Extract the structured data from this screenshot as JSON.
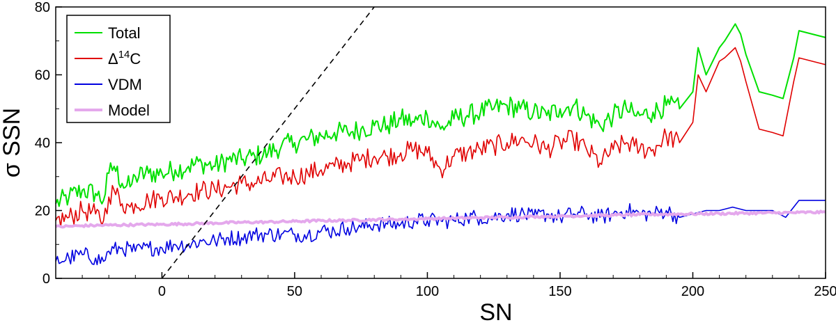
{
  "chart_data": {
    "type": "line",
    "xlabel": "SN",
    "ylabel": "σ SSN",
    "xlim": [
      -40,
      250
    ],
    "ylim": [
      0,
      80
    ],
    "xticks": [
      0,
      50,
      100,
      150,
      200,
      250
    ],
    "yticks": [
      0,
      20,
      40,
      60,
      80
    ],
    "grid": false,
    "legend_position": "top-left",
    "legend_sup": "14",
    "series": [
      {
        "name": "Total",
        "color": "#00e000",
        "x": [
          -40,
          -35,
          -30,
          -25,
          -22,
          -20,
          -18,
          -15,
          -12,
          -10,
          -5,
          0,
          5,
          10,
          15,
          20,
          25,
          30,
          35,
          40,
          45,
          50,
          55,
          60,
          65,
          70,
          75,
          80,
          85,
          90,
          95,
          100,
          105,
          110,
          115,
          120,
          125,
          130,
          135,
          140,
          145,
          150,
          155,
          160,
          165,
          170,
          175,
          178,
          180,
          185,
          190,
          195,
          200,
          202,
          205,
          210,
          212,
          216,
          218,
          220,
          225,
          230,
          234,
          238,
          240,
          245,
          250
        ],
        "y": [
          22,
          24,
          26,
          25,
          23,
          31,
          33,
          28,
          27,
          30,
          31,
          31,
          32,
          33,
          34,
          33,
          35,
          35,
          36,
          37,
          39,
          40,
          41,
          42,
          43,
          43,
          44,
          45,
          45,
          47,
          46,
          48,
          44,
          47,
          48,
          49,
          50,
          51,
          50,
          49,
          48,
          50,
          51,
          48,
          45,
          48,
          50,
          48,
          48,
          49,
          51,
          50,
          55,
          68,
          60,
          68,
          70,
          75,
          72,
          66,
          55,
          54,
          53,
          65,
          73,
          72,
          71
        ]
      },
      {
        "name": "Δ14C",
        "color": "#e00000",
        "x": [
          -40,
          -35,
          -30,
          -25,
          -22,
          -20,
          -18,
          -15,
          -12,
          -10,
          -5,
          0,
          5,
          10,
          15,
          20,
          25,
          30,
          35,
          40,
          45,
          50,
          55,
          60,
          65,
          70,
          75,
          80,
          85,
          90,
          95,
          100,
          105,
          110,
          115,
          120,
          125,
          130,
          135,
          140,
          145,
          150,
          155,
          160,
          165,
          170,
          175,
          178,
          180,
          185,
          190,
          195,
          200,
          202,
          205,
          210,
          212,
          216,
          218,
          220,
          225,
          230,
          234,
          238,
          240,
          245,
          250
        ],
        "y": [
          17,
          18,
          20,
          19,
          17,
          24,
          26,
          22,
          21,
          22,
          23,
          24,
          24,
          25,
          26,
          26,
          27,
          28,
          28,
          29,
          30,
          30,
          31,
          32,
          33,
          34,
          35,
          36,
          36,
          37,
          38,
          37,
          32,
          36,
          37,
          38,
          39,
          40,
          41,
          40,
          38,
          40,
          41,
          38,
          34,
          38,
          40,
          39,
          38,
          38,
          42,
          40,
          46,
          60,
          55,
          64,
          65,
          68,
          64,
          58,
          44,
          43,
          42,
          58,
          65,
          64,
          63
        ]
      },
      {
        "name": "VDM",
        "color": "#0000e0",
        "x": [
          -40,
          -35,
          -30,
          -25,
          -22,
          -20,
          -15,
          -10,
          -5,
          0,
          5,
          10,
          15,
          20,
          25,
          30,
          35,
          40,
          45,
          50,
          55,
          60,
          65,
          70,
          75,
          80,
          85,
          90,
          95,
          100,
          105,
          110,
          115,
          120,
          125,
          130,
          135,
          140,
          145,
          150,
          155,
          160,
          165,
          170,
          175,
          180,
          185,
          190,
          195,
          200,
          205,
          210,
          215,
          220,
          225,
          230,
          235,
          240,
          245,
          250
        ],
        "y": [
          5,
          6,
          7,
          6,
          5,
          8,
          9,
          8,
          9,
          9,
          10,
          10,
          11,
          11,
          12,
          12,
          13,
          13,
          13,
          13,
          13,
          14,
          14,
          15,
          15,
          16,
          16,
          16,
          17,
          17,
          17,
          17,
          18,
          18,
          18,
          19,
          19,
          18,
          19,
          18,
          19,
          19,
          18,
          19,
          20,
          19,
          19,
          20,
          18,
          19,
          20,
          20,
          21,
          20,
          20,
          20,
          18,
          23,
          23,
          23
        ]
      },
      {
        "name": "Model",
        "color": "#e4a8ec",
        "x": [
          -40,
          -30,
          -20,
          -10,
          0,
          10,
          20,
          30,
          40,
          50,
          60,
          70,
          80,
          90,
          100,
          110,
          120,
          130,
          140,
          150,
          160,
          170,
          180,
          190,
          200,
          210,
          220,
          230,
          240,
          250
        ],
        "y": [
          15.2,
          15.5,
          15.7,
          15.8,
          15.9,
          16.1,
          16.3,
          16.5,
          16.6,
          16.8,
          17.0,
          17.1,
          17.3,
          17.4,
          17.6,
          17.7,
          17.9,
          18.0,
          18.2,
          18.3,
          18.5,
          18.6,
          18.8,
          18.9,
          19.0,
          19.1,
          19.2,
          19.3,
          19.4,
          19.5
        ]
      },
      {
        "name": "",
        "color": "#000000",
        "dashed": true,
        "x": [
          0,
          80
        ],
        "y": [
          0,
          80
        ]
      }
    ]
  }
}
